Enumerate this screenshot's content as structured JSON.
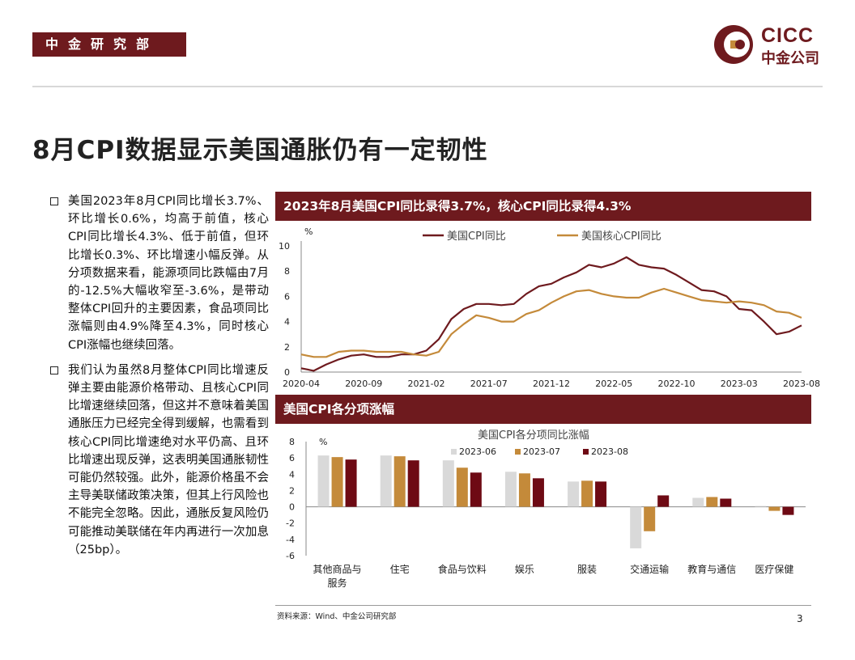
{
  "header": {
    "dept": "中金研究部",
    "logo_en": "CICC",
    "logo_cn": "中金公司"
  },
  "title": "8月CPI数据显示美国通胀仍有一定韧性",
  "bullets": [
    "美国2023年8月CPI同比增长3.7%、环比增长0.6%，均高于前值，核心CPI同比增长4.3%、低于前值，但环比增长0.3%、环比增速小幅反弹。从分项数据来看，能源项同比跌幅由7月的-12.5%大幅收窄至-3.6%，是带动整体CPI回升的主要因素，食品项同比涨幅则由4.9%降至4.3%，同时核心CPI涨幅也继续回落。",
    "我们认为虽然8月整体CPI同比增速反弹主要由能源价格带动、且核心CPI同比增速继续回落，但这并不意味着美国通胀压力已经完全得到缓解，也需看到核心CPI同比增速绝对水平仍高、且环比增速出现反弹，这表明美国通胀韧性可能仍然较强。此外，能源价格虽不会主导美联储政策决策，但其上行风险也不能完全忽略。因此，通胀反复风险仍可能推动美联储在年内再进行一次加息（25bp）。"
  ],
  "chart1_header": "2023年8月美国CPI同比录得3.7%，核心CPI同比录得4.3%",
  "chart2_header": "美国CPI各分项涨幅",
  "footer": {
    "source": "资料来源：Wind、中金公司研究部",
    "page": "3"
  },
  "colors": {
    "brand": "#6e1a1e",
    "cpi": "#6e1a1e",
    "core": "#c48a3a",
    "jun": "#d9d9d9",
    "jul": "#c48a3a",
    "aug": "#6e0a14"
  },
  "chart_data": [
    {
      "type": "line",
      "ylabel": "%",
      "ylim": [
        0,
        10
      ],
      "yticks": [
        0,
        2,
        4,
        6,
        8,
        10
      ],
      "x": [
        "2020-04",
        "2020-05",
        "2020-06",
        "2020-07",
        "2020-08",
        "2020-09",
        "2020-10",
        "2020-11",
        "2020-12",
        "2021-01",
        "2021-02",
        "2021-03",
        "2021-04",
        "2021-05",
        "2021-06",
        "2021-07",
        "2021-08",
        "2021-09",
        "2021-10",
        "2021-11",
        "2021-12",
        "2022-01",
        "2022-02",
        "2022-03",
        "2022-04",
        "2022-05",
        "2022-06",
        "2022-07",
        "2022-08",
        "2022-09",
        "2022-10",
        "2022-11",
        "2022-12",
        "2023-01",
        "2023-02",
        "2023-03",
        "2023-04",
        "2023-05",
        "2023-06",
        "2023-07",
        "2023-08"
      ],
      "xtick_labels": [
        "2020-04",
        "2020-09",
        "2021-02",
        "2021-07",
        "2021-12",
        "2022-05",
        "2022-10",
        "2023-03",
        "2023-08"
      ],
      "series": [
        {
          "name": "美国CPI同比",
          "values": [
            0.3,
            0.1,
            0.6,
            1.0,
            1.3,
            1.4,
            1.2,
            1.2,
            1.4,
            1.4,
            1.7,
            2.6,
            4.2,
            5.0,
            5.4,
            5.4,
            5.3,
            5.4,
            6.2,
            6.8,
            7.0,
            7.5,
            7.9,
            8.5,
            8.3,
            8.6,
            9.1,
            8.5,
            8.3,
            8.2,
            7.7,
            7.1,
            6.5,
            6.4,
            6.0,
            5.0,
            4.9,
            4.0,
            3.0,
            3.2,
            3.7
          ]
        },
        {
          "name": "美国核心CPI同比",
          "values": [
            1.4,
            1.2,
            1.2,
            1.6,
            1.7,
            1.7,
            1.6,
            1.6,
            1.6,
            1.4,
            1.3,
            1.6,
            3.0,
            3.8,
            4.5,
            4.3,
            4.0,
            4.0,
            4.6,
            4.9,
            5.5,
            6.0,
            6.4,
            6.5,
            6.2,
            6.0,
            5.9,
            5.9,
            6.3,
            6.6,
            6.3,
            6.0,
            5.7,
            5.6,
            5.5,
            5.6,
            5.5,
            5.3,
            4.8,
            4.7,
            4.3
          ]
        }
      ]
    },
    {
      "type": "bar",
      "title": "美国CPI各分项同比涨幅",
      "ylabel": "%",
      "ylim": [
        -6,
        8
      ],
      "yticks": [
        -6,
        -4,
        -2,
        0,
        2,
        4,
        6,
        8
      ],
      "categories": [
        [
          "其他商品与",
          "服务"
        ],
        [
          "住宅"
        ],
        [
          "食品与饮料"
        ],
        [
          "娱乐"
        ],
        [
          "服装"
        ],
        [
          "交通运输"
        ],
        [
          "教育与通信"
        ],
        [
          "医疗保健"
        ]
      ],
      "series": [
        {
          "name": "2023-06",
          "values": [
            6.3,
            6.3,
            5.7,
            4.3,
            3.1,
            -5.1,
            1.1,
            0.1
          ]
        },
        {
          "name": "2023-07",
          "values": [
            6.1,
            6.2,
            4.8,
            4.1,
            3.2,
            -3.0,
            1.2,
            -0.5
          ]
        },
        {
          "name": "2023-08",
          "values": [
            5.8,
            5.7,
            4.2,
            3.5,
            3.1,
            1.4,
            1.0,
            -1.0
          ]
        }
      ]
    }
  ]
}
